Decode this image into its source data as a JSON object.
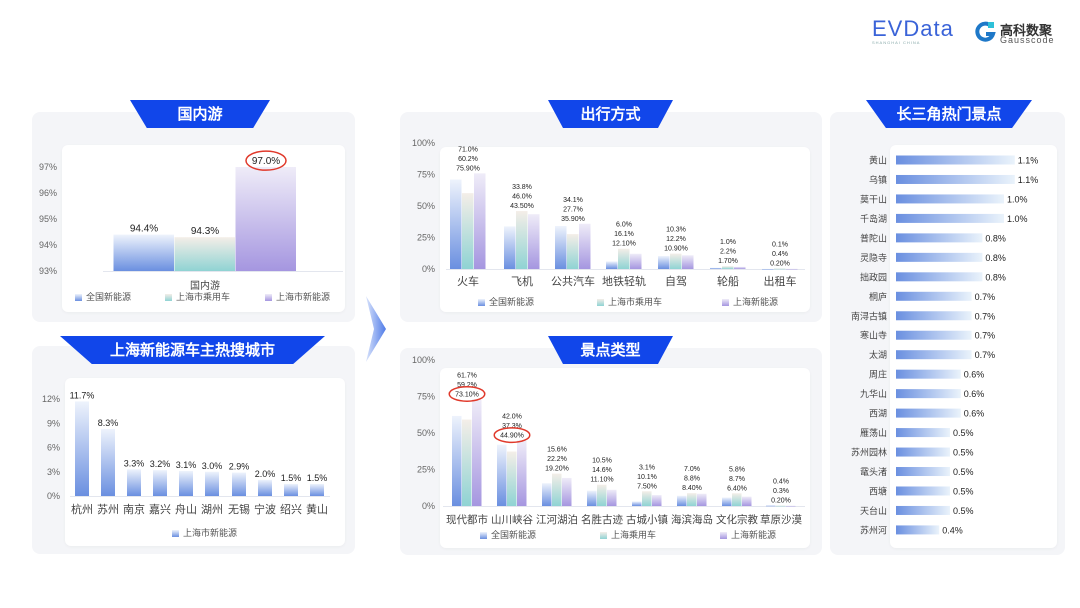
{
  "logos": {
    "evdata": "EVData",
    "evdata_sub": "SHANGHAI CHINA",
    "gauss_cn": "高科数聚",
    "gauss_en": "Gausscode"
  },
  "colors": {
    "header": "#1146ea",
    "series": [
      "#6f93e0",
      "#8fd3d3",
      "#a596e0"
    ],
    "highlight": "#e0392b"
  },
  "chart_data": [
    {
      "id": "domestic",
      "type": "bar",
      "title": "国内游",
      "categories": [
        "国内游"
      ],
      "series": [
        {
          "name": "全国新能源",
          "values": [
            94.4
          ],
          "labels": [
            "94.4%"
          ]
        },
        {
          "name": "上海市乘用车",
          "values": [
            94.3
          ],
          "labels": [
            "94.3%"
          ]
        },
        {
          "name": "上海市新能源",
          "values": [
            97.0
          ],
          "labels": [
            "97.0%"
          ]
        }
      ],
      "ylim": [
        93,
        97
      ],
      "yticks": [
        "93%",
        "94%",
        "95%",
        "96%",
        "97%"
      ],
      "highlights": [
        [
          2,
          0
        ]
      ],
      "legend": "bottom",
      "grid": false
    },
    {
      "id": "cities",
      "type": "bar",
      "title": "上海新能源车主热搜城市",
      "categories": [
        "杭州",
        "苏州",
        "南京",
        "嘉兴",
        "舟山",
        "湖州",
        "无锡",
        "宁波",
        "绍兴",
        "黄山"
      ],
      "series": [
        {
          "name": "上海市新能源",
          "values": [
            11.7,
            8.3,
            3.3,
            3.2,
            3.1,
            3.0,
            2.9,
            2.0,
            1.5,
            1.5
          ],
          "labels": [
            "11.7%",
            "8.3%",
            "3.3%",
            "3.2%",
            "3.1%",
            "3.0%",
            "2.9%",
            "2.0%",
            "1.5%",
            "1.5%"
          ]
        }
      ],
      "ylim": [
        0,
        12
      ],
      "yticks": [
        "0%",
        "3%",
        "6%",
        "9%",
        "12%"
      ],
      "highlights": [],
      "legend": "bottom",
      "grid": false
    },
    {
      "id": "transport",
      "type": "bar",
      "title": "出行方式",
      "categories": [
        "火车",
        "飞机",
        "公共汽车",
        "地铁轻轨",
        "自驾",
        "轮船",
        "出租车"
      ],
      "series": [
        {
          "name": "全国新能源",
          "values": [
            71.0,
            33.8,
            34.1,
            6.0,
            10.3,
            1.0,
            0.1
          ],
          "labels": [
            "71.0%",
            "33.8%",
            "34.1%",
            "6.0%",
            "10.3%",
            "1.0%",
            "0.1%"
          ]
        },
        {
          "name": "上海市乘用车",
          "values": [
            60.2,
            46.0,
            27.7,
            16.1,
            12.2,
            2.2,
            0.4
          ],
          "labels": [
            "60.2%",
            "46.0%",
            "27.7%",
            "16.1%",
            "12.2%",
            "2.2%",
            "0.4%"
          ]
        },
        {
          "name": "上海新能源",
          "values": [
            75.9,
            43.5,
            35.9,
            12.1,
            10.9,
            1.7,
            0.2
          ],
          "labels": [
            "75.90%",
            "43.50%",
            "35.90%",
            "12.10%",
            "10.90%",
            "1.70%",
            "0.20%"
          ]
        }
      ],
      "ylim": [
        0,
        100
      ],
      "yticks": [
        "0%",
        "25%",
        "50%",
        "75%",
        "100%"
      ],
      "highlights": [],
      "legend": "bottom",
      "grid": false
    },
    {
      "id": "scenic_type",
      "type": "bar",
      "title": "景点类型",
      "categories": [
        "现代都市",
        "山川峡谷",
        "江河湖泊",
        "名胜古迹",
        "古城小镇",
        "海滨海岛",
        "文化宗教",
        "草原沙漠"
      ],
      "series": [
        {
          "name": "全国新能源",
          "values": [
            61.7,
            42.0,
            15.6,
            10.5,
            3.1,
            7.0,
            5.8,
            0.4
          ],
          "labels": [
            "61.7%",
            "42.0%",
            "15.6%",
            "10.5%",
            "3.1%",
            "7.0%",
            "5.8%",
            "0.4%"
          ]
        },
        {
          "name": "上海乘用车",
          "values": [
            59.2,
            37.3,
            22.2,
            14.6,
            10.1,
            8.8,
            8.7,
            0.3
          ],
          "labels": [
            "59.2%",
            "37.3%",
            "22.2%",
            "14.6%",
            "10.1%",
            "8.8%",
            "8.7%",
            "0.3%"
          ]
        },
        {
          "name": "上海新能源",
          "values": [
            73.1,
            44.9,
            19.2,
            11.1,
            7.5,
            8.4,
            6.4,
            0.2
          ],
          "labels": [
            "73.10%",
            "44.90%",
            "19.20%",
            "11.10%",
            "7.50%",
            "8.40%",
            "6.40%",
            "0.20%"
          ]
        }
      ],
      "ylim": [
        0,
        100
      ],
      "yticks": [
        "0%",
        "25%",
        "50%",
        "75%",
        "100%"
      ],
      "highlights": [
        [
          2,
          0
        ],
        [
          2,
          1
        ]
      ],
      "legend": "bottom",
      "grid": false
    },
    {
      "id": "hot_spots",
      "type": "bar",
      "orientation": "horizontal",
      "title": "长三角热门景点",
      "categories": [
        "黄山",
        "乌镇",
        "莫干山",
        "千岛湖",
        "普陀山",
        "灵隐寺",
        "拙政园",
        "桐庐",
        "南浔古镇",
        "寒山寺",
        "太湖",
        "周庄",
        "九华山",
        "西湖",
        "雁荡山",
        "苏州园林",
        "鼋头渚",
        "西塘",
        "天台山",
        "苏州河"
      ],
      "series": [
        {
          "values": [
            1.1,
            1.1,
            1.0,
            1.0,
            0.8,
            0.8,
            0.8,
            0.7,
            0.7,
            0.7,
            0.7,
            0.6,
            0.6,
            0.6,
            0.5,
            0.5,
            0.5,
            0.5,
            0.5,
            0.4
          ],
          "labels": [
            "1.1%",
            "1.1%",
            "1.0%",
            "1.0%",
            "0.8%",
            "0.8%",
            "0.8%",
            "0.7%",
            "0.7%",
            "0.7%",
            "0.7%",
            "0.6%",
            "0.6%",
            "0.6%",
            "0.5%",
            "0.5%",
            "0.5%",
            "0.5%",
            "0.5%",
            "0.4%"
          ]
        }
      ],
      "legend": "none",
      "grid": false
    }
  ]
}
